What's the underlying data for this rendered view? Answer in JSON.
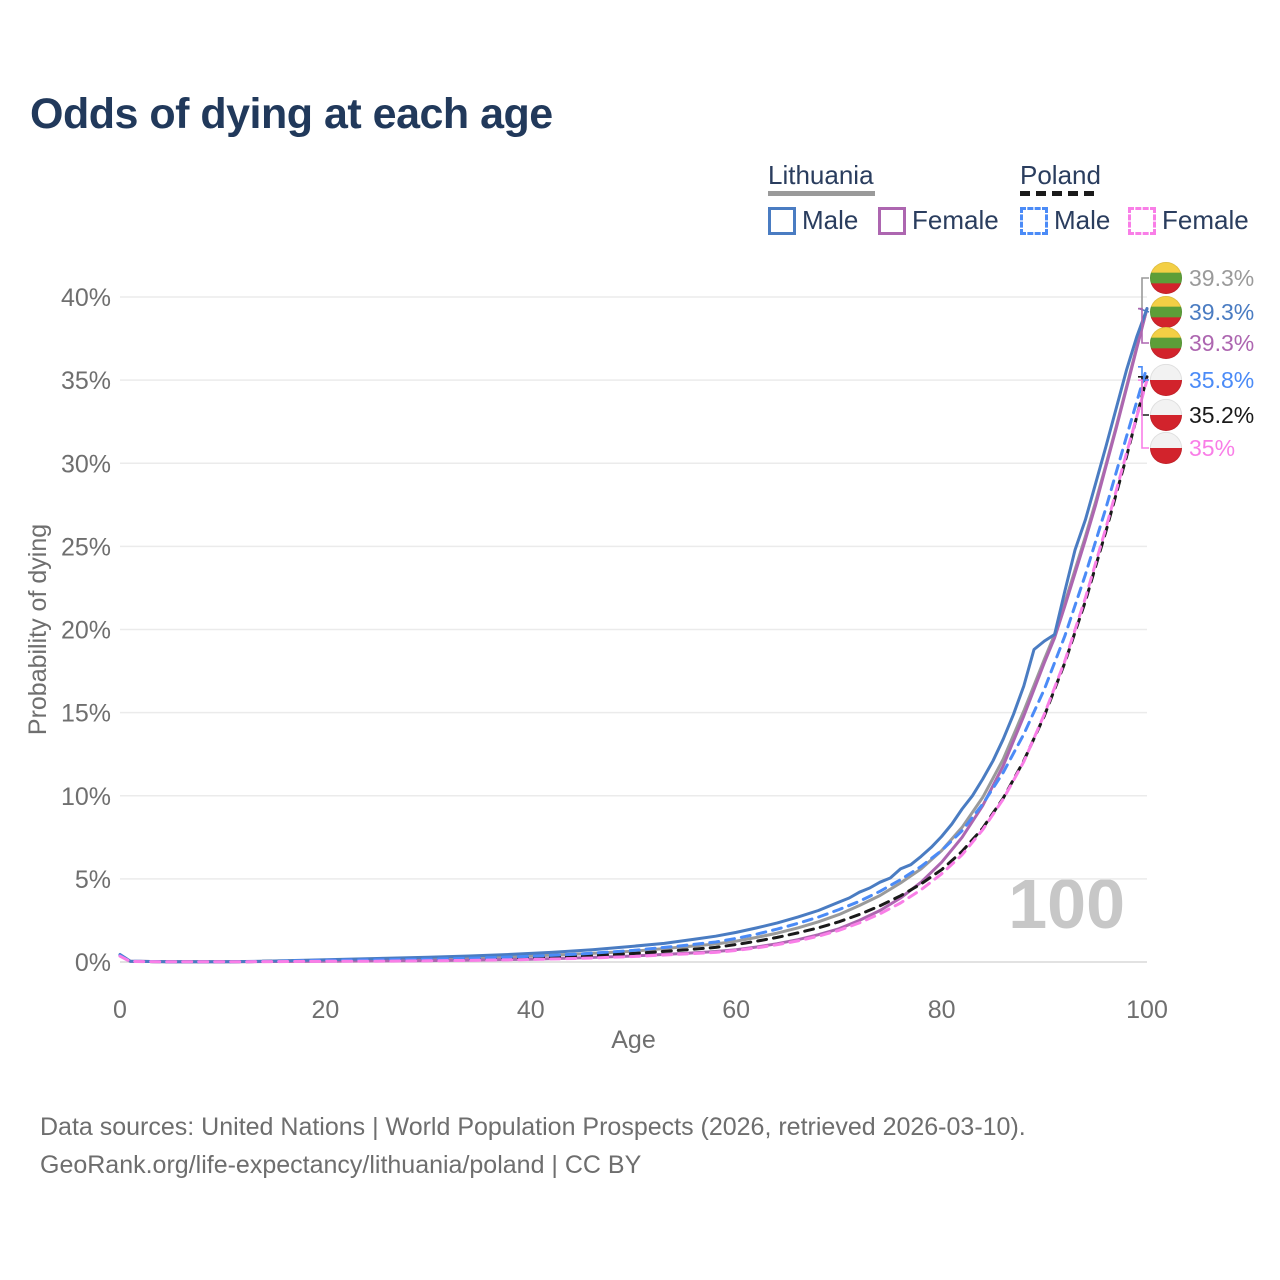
{
  "title": "Odds of dying at each age",
  "watermark_age": "100",
  "legend": {
    "lithuania": {
      "label": "Lithuania",
      "male_label": "Male",
      "female_label": "Female"
    },
    "poland": {
      "label": "Poland",
      "male_label": "Male",
      "female_label": "Female"
    }
  },
  "footer": {
    "line1": "Data sources: United Nations | World Population Prospects (2026, retrieved 2026-03-10).",
    "line2": "GeoRank.org/life-expectancy/lithuania/poland | CC BY"
  },
  "colors": {
    "title_text": "#21395b",
    "axis_text": "#6f6f6f",
    "gridline": "#ebebeb",
    "baseline": "#d8d8d8",
    "watermark": "#c7c7c7"
  },
  "chart_data": {
    "type": "line",
    "title": "Odds of dying at each age",
    "xlabel": "Age",
    "ylabel": "Probability of dying",
    "xlim": [
      0,
      100
    ],
    "ylim": [
      0,
      40
    ],
    "x_ticks": [
      "0",
      "20",
      "40",
      "60",
      "80",
      "100"
    ],
    "y_ticks": [
      {
        "v": 0,
        "label": "0%"
      },
      {
        "v": 5,
        "label": "5%"
      },
      {
        "v": 10,
        "label": "10%"
      },
      {
        "v": 15,
        "label": "15%"
      },
      {
        "v": 20,
        "label": "20%"
      },
      {
        "v": 25,
        "label": "25%"
      },
      {
        "v": 30,
        "label": "30%"
      },
      {
        "v": 35,
        "label": "35%"
      },
      {
        "v": 40,
        "label": "40%"
      }
    ],
    "grid": "horizontal",
    "legend_position": "top-right",
    "series": [
      {
        "id": "lithuania-both",
        "name": "Lithuania (both sexes)",
        "color": "#9a9a9a",
        "dash": false,
        "points": [
          [
            0,
            0.42
          ],
          [
            1,
            0.045
          ],
          [
            5,
            0.018
          ],
          [
            10,
            0.016
          ],
          [
            15,
            0.045
          ],
          [
            20,
            0.1
          ],
          [
            25,
            0.14
          ],
          [
            30,
            0.18
          ],
          [
            35,
            0.25
          ],
          [
            40,
            0.36
          ],
          [
            45,
            0.49
          ],
          [
            50,
            0.65
          ],
          [
            55,
            0.92
          ],
          [
            58,
            1.08
          ],
          [
            60,
            1.26
          ],
          [
            62,
            1.48
          ],
          [
            64,
            1.74
          ],
          [
            66,
            2.05
          ],
          [
            68,
            2.42
          ],
          [
            70,
            2.85
          ],
          [
            72,
            3.4
          ],
          [
            74,
            4.0
          ],
          [
            76,
            4.75
          ],
          [
            78,
            5.6
          ],
          [
            80,
            6.7
          ],
          [
            82,
            8.1
          ],
          [
            84,
            9.9
          ],
          [
            86,
            12.2
          ],
          [
            88,
            15.1
          ],
          [
            90,
            18.2
          ],
          [
            91,
            19.7
          ],
          [
            92,
            21.6
          ],
          [
            93,
            23.6
          ],
          [
            94,
            25.6
          ],
          [
            95,
            27.7
          ],
          [
            96,
            29.9
          ],
          [
            97,
            32.2
          ],
          [
            98,
            34.6
          ],
          [
            99,
            37.0
          ],
          [
            100,
            39.3
          ]
        ]
      },
      {
        "id": "lithuania-female",
        "name": "Lithuania Female",
        "color": "#ad66b0",
        "dash": false,
        "points": [
          [
            0,
            0.38
          ],
          [
            1,
            0.04
          ],
          [
            5,
            0.015
          ],
          [
            10,
            0.012
          ],
          [
            15,
            0.03
          ],
          [
            20,
            0.05
          ],
          [
            25,
            0.065
          ],
          [
            30,
            0.085
          ],
          [
            35,
            0.12
          ],
          [
            40,
            0.17
          ],
          [
            45,
            0.25
          ],
          [
            50,
            0.36
          ],
          [
            55,
            0.52
          ],
          [
            58,
            0.63
          ],
          [
            60,
            0.74
          ],
          [
            62,
            0.9
          ],
          [
            64,
            1.1
          ],
          [
            66,
            1.34
          ],
          [
            68,
            1.64
          ],
          [
            70,
            2.0
          ],
          [
            72,
            2.5
          ],
          [
            74,
            3.1
          ],
          [
            76,
            3.85
          ],
          [
            78,
            4.8
          ],
          [
            80,
            6.0
          ],
          [
            82,
            7.5
          ],
          [
            84,
            9.4
          ],
          [
            86,
            11.8
          ],
          [
            88,
            14.8
          ],
          [
            90,
            18.0
          ],
          [
            91,
            19.5
          ],
          [
            92,
            21.4
          ],
          [
            93,
            23.4
          ],
          [
            94,
            25.4
          ],
          [
            95,
            27.5
          ],
          [
            96,
            29.8
          ],
          [
            97,
            32.1
          ],
          [
            98,
            34.5
          ],
          [
            99,
            36.9
          ],
          [
            100,
            39.3
          ]
        ]
      },
      {
        "id": "lithuania-male",
        "name": "Lithuania Male",
        "color": "#4a7cc2",
        "dash": false,
        "points": [
          [
            0,
            0.45
          ],
          [
            1,
            0.05
          ],
          [
            3,
            0.03
          ],
          [
            5,
            0.02
          ],
          [
            10,
            0.02
          ],
          [
            14,
            0.04
          ],
          [
            16,
            0.07
          ],
          [
            18,
            0.1
          ],
          [
            20,
            0.14
          ],
          [
            23,
            0.18
          ],
          [
            26,
            0.22
          ],
          [
            30,
            0.28
          ],
          [
            34,
            0.36
          ],
          [
            38,
            0.46
          ],
          [
            42,
            0.58
          ],
          [
            46,
            0.74
          ],
          [
            50,
            0.95
          ],
          [
            53,
            1.12
          ],
          [
            56,
            1.38
          ],
          [
            58,
            1.55
          ],
          [
            60,
            1.78
          ],
          [
            62,
            2.05
          ],
          [
            64,
            2.35
          ],
          [
            66,
            2.7
          ],
          [
            68,
            3.1
          ],
          [
            70,
            3.6
          ],
          [
            71,
            3.85
          ],
          [
            72,
            4.2
          ],
          [
            73,
            4.45
          ],
          [
            74,
            4.8
          ],
          [
            75,
            5.05
          ],
          [
            76,
            5.6
          ],
          [
            77,
            5.85
          ],
          [
            78,
            6.35
          ],
          [
            79,
            6.9
          ],
          [
            80,
            7.55
          ],
          [
            81,
            8.3
          ],
          [
            82,
            9.2
          ],
          [
            83,
            10.0
          ],
          [
            84,
            11.0
          ],
          [
            85,
            12.1
          ],
          [
            86,
            13.4
          ],
          [
            87,
            14.9
          ],
          [
            88,
            16.6
          ],
          [
            89,
            18.8
          ],
          [
            90,
            19.3
          ],
          [
            91,
            19.7
          ],
          [
            92,
            22.3
          ],
          [
            93,
            24.8
          ],
          [
            94,
            26.6
          ],
          [
            95,
            28.8
          ],
          [
            96,
            31.0
          ],
          [
            97,
            33.3
          ],
          [
            98,
            35.6
          ],
          [
            99,
            37.6
          ],
          [
            100,
            39.3
          ]
        ]
      },
      {
        "id": "poland-both",
        "name": "Poland (both sexes)",
        "color": "#1a1a1a",
        "dash": true,
        "points": [
          [
            0,
            0.38
          ],
          [
            1,
            0.035
          ],
          [
            5,
            0.013
          ],
          [
            10,
            0.011
          ],
          [
            15,
            0.04
          ],
          [
            20,
            0.07
          ],
          [
            25,
            0.095
          ],
          [
            30,
            0.125
          ],
          [
            35,
            0.175
          ],
          [
            40,
            0.25
          ],
          [
            45,
            0.36
          ],
          [
            50,
            0.51
          ],
          [
            55,
            0.73
          ],
          [
            58,
            0.88
          ],
          [
            60,
            1.05
          ],
          [
            62,
            1.25
          ],
          [
            64,
            1.48
          ],
          [
            66,
            1.75
          ],
          [
            68,
            2.06
          ],
          [
            70,
            2.42
          ],
          [
            72,
            2.86
          ],
          [
            74,
            3.38
          ],
          [
            76,
            3.98
          ],
          [
            78,
            4.7
          ],
          [
            80,
            5.55
          ],
          [
            82,
            6.65
          ],
          [
            84,
            8.05
          ],
          [
            86,
            9.85
          ],
          [
            88,
            12.1
          ],
          [
            90,
            14.8
          ],
          [
            92,
            18.0
          ],
          [
            94,
            21.7
          ],
          [
            96,
            25.9
          ],
          [
            98,
            30.4
          ],
          [
            100,
            35.2
          ]
        ]
      },
      {
        "id": "poland-male",
        "name": "Poland Male",
        "color": "#4b8bf7",
        "dash": true,
        "points": [
          [
            0,
            0.4
          ],
          [
            1,
            0.04
          ],
          [
            5,
            0.015
          ],
          [
            10,
            0.013
          ],
          [
            15,
            0.045
          ],
          [
            20,
            0.1
          ],
          [
            25,
            0.13
          ],
          [
            30,
            0.17
          ],
          [
            35,
            0.24
          ],
          [
            40,
            0.34
          ],
          [
            45,
            0.49
          ],
          [
            50,
            0.7
          ],
          [
            55,
            1.0
          ],
          [
            58,
            1.2
          ],
          [
            60,
            1.42
          ],
          [
            62,
            1.68
          ],
          [
            64,
            1.98
          ],
          [
            66,
            2.32
          ],
          [
            68,
            2.7
          ],
          [
            70,
            3.15
          ],
          [
            72,
            3.65
          ],
          [
            74,
            4.25
          ],
          [
            76,
            4.95
          ],
          [
            78,
            5.75
          ],
          [
            80,
            6.7
          ],
          [
            82,
            7.9
          ],
          [
            84,
            9.5
          ],
          [
            86,
            11.4
          ],
          [
            88,
            13.7
          ],
          [
            90,
            16.4
          ],
          [
            92,
            19.6
          ],
          [
            94,
            23.3
          ],
          [
            96,
            27.3
          ],
          [
            98,
            31.6
          ],
          [
            100,
            35.8
          ]
        ]
      },
      {
        "id": "poland-female",
        "name": "Poland Female",
        "color": "#f97ee7",
        "dash": true,
        "points": [
          [
            0,
            0.35
          ],
          [
            1,
            0.03
          ],
          [
            5,
            0.012
          ],
          [
            10,
            0.01
          ],
          [
            15,
            0.025
          ],
          [
            20,
            0.04
          ],
          [
            25,
            0.05
          ],
          [
            30,
            0.07
          ],
          [
            35,
            0.1
          ],
          [
            40,
            0.15
          ],
          [
            45,
            0.22
          ],
          [
            50,
            0.33
          ],
          [
            55,
            0.48
          ],
          [
            58,
            0.58
          ],
          [
            60,
            0.7
          ],
          [
            62,
            0.85
          ],
          [
            64,
            1.04
          ],
          [
            66,
            1.27
          ],
          [
            68,
            1.55
          ],
          [
            70,
            1.9
          ],
          [
            72,
            2.35
          ],
          [
            74,
            2.9
          ],
          [
            76,
            3.55
          ],
          [
            78,
            4.35
          ],
          [
            80,
            5.3
          ],
          [
            82,
            6.45
          ],
          [
            84,
            7.95
          ],
          [
            86,
            9.8
          ],
          [
            88,
            12.05
          ],
          [
            90,
            14.9
          ],
          [
            92,
            18.1
          ],
          [
            94,
            21.9
          ],
          [
            96,
            26.1
          ],
          [
            98,
            30.6
          ],
          [
            100,
            35.0
          ]
        ]
      }
    ],
    "end_labels": [
      {
        "series": "lithuania-both",
        "flag": "lithuania",
        "text": "39.3%",
        "color": "#9a9a9a"
      },
      {
        "series": "lithuania-male",
        "flag": "lithuania",
        "text": "39.3%",
        "color": "#4a7cc2"
      },
      {
        "series": "lithuania-female",
        "flag": "lithuania",
        "text": "39.3%",
        "color": "#ad66b0"
      },
      {
        "series": "poland-male",
        "flag": "poland",
        "text": "35.8%",
        "color": "#4b8bf7"
      },
      {
        "series": "poland-both",
        "flag": "poland",
        "text": "35.2%",
        "color": "#1a1a1a"
      },
      {
        "series": "poland-female",
        "flag": "poland",
        "text": "35%",
        "color": "#f97ee7"
      }
    ],
    "flags": {
      "lithuania": [
        "#f3cf45",
        "#5c9e38",
        "#d2232c"
      ],
      "poland": [
        "#f2f2f2",
        "#d2232c"
      ]
    }
  }
}
